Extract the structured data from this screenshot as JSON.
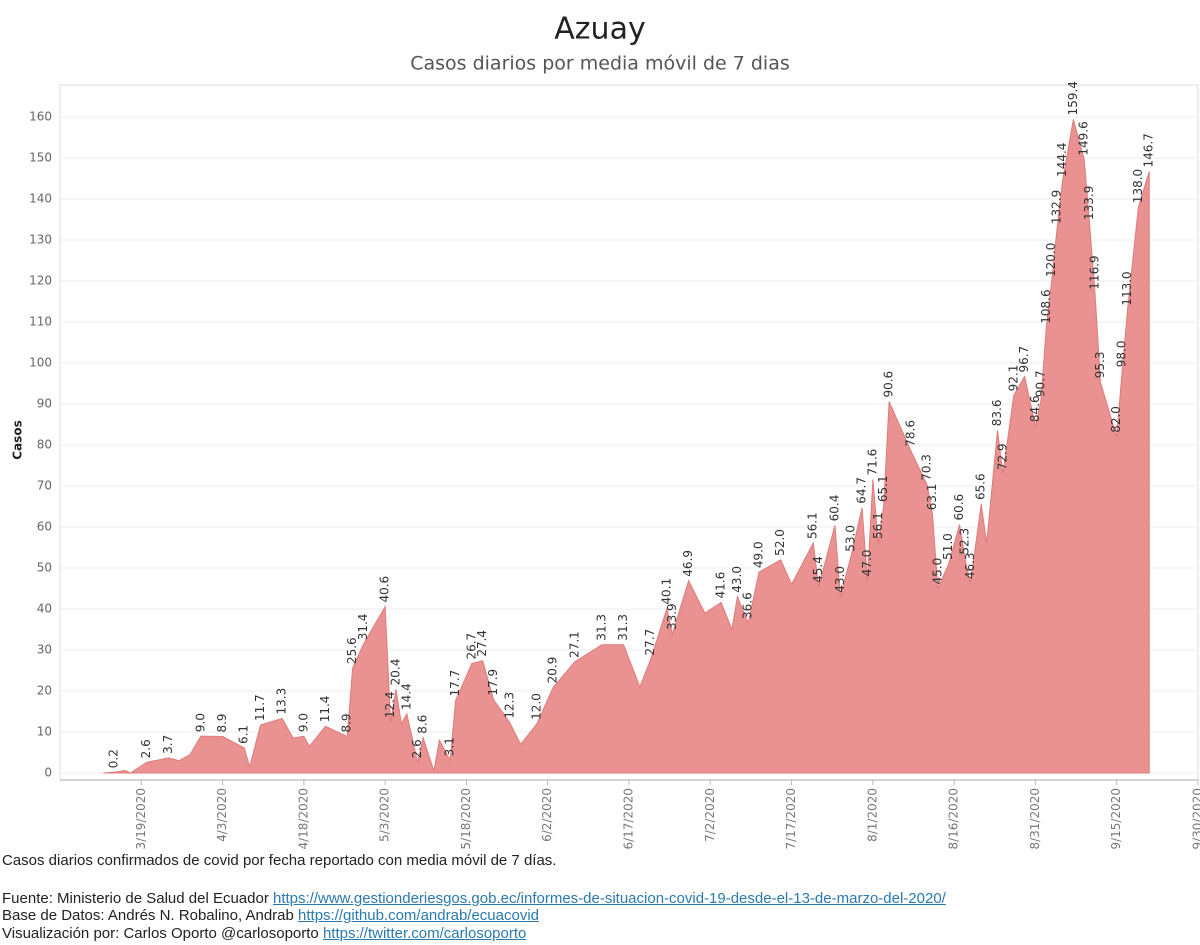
{
  "chart_data": {
    "type": "area",
    "title": "Azuay",
    "subtitle": "Casos diarios por media móvil de 7 dias",
    "y_label": "Casos",
    "color": "#ea9292",
    "grid": true,
    "ylim": [
      -1.7,
      167.8
    ],
    "yticks": [
      0,
      10,
      20,
      30,
      40,
      50,
      60,
      70,
      80,
      90,
      100,
      110,
      120,
      130,
      140,
      150,
      160
    ],
    "xlim": [
      "3/4/2020",
      "9/30/2020"
    ],
    "xticks": [
      "3/19/2020",
      "4/3/2020",
      "4/18/2020",
      "5/3/2020",
      "5/18/2020",
      "6/2/2020",
      "6/17/2020",
      "7/2/2020",
      "7/17/2020",
      "8/1/2020",
      "8/16/2020",
      "8/31/2020",
      "9/15/2020",
      "9/30/2020"
    ],
    "x": [
      "3/12/2020",
      "3/14/2020",
      "3/16/2020",
      "3/17/2020",
      "3/20/2020",
      "3/24/2020",
      "3/26/2020",
      "3/28/2020",
      "3/30/2020",
      "4/3/2020",
      "4/7/2020",
      "4/8/2020",
      "4/10/2020",
      "4/14/2020",
      "4/16/2020",
      "4/18/2020",
      "4/19/2020",
      "4/22/2020",
      "4/26/2020",
      "4/27/2020",
      "4/29/2020",
      "5/3/2020",
      "5/4/2020",
      "5/5/2020",
      "5/6/2020",
      "5/7/2020",
      "5/9/2020",
      "5/10/2020",
      "5/12/2020",
      "5/13/2020",
      "5/15/2020",
      "5/16/2020",
      "5/19/2020",
      "5/21/2020",
      "5/23/2020",
      "5/26/2020",
      "5/28/2020",
      "5/31/2020",
      "6/3/2020",
      "6/7/2020",
      "6/12/2020",
      "6/16/2020",
      "6/19/2020",
      "6/21/2020",
      "6/24/2020",
      "6/25/2020",
      "6/28/2020",
      "7/1/2020",
      "7/4/2020",
      "7/6/2020",
      "7/7/2020",
      "7/9/2020",
      "7/11/2020",
      "7/15/2020",
      "7/17/2020",
      "7/21/2020",
      "7/22/2020",
      "7/25/2020",
      "7/26/2020",
      "7/28/2020",
      "7/30/2020",
      "7/31/2020",
      "8/1/2020",
      "8/2/2020",
      "8/3/2020",
      "8/4/2020",
      "8/8/2020",
      "8/11/2020",
      "8/12/2020",
      "8/13/2020",
      "8/15/2020",
      "8/17/2020",
      "8/18/2020",
      "8/19/2020",
      "8/21/2020",
      "8/22/2020",
      "8/24/2020",
      "8/25/2020",
      "8/27/2020",
      "8/29/2020",
      "8/31/2020",
      "9/1/2020",
      "9/2/2020",
      "9/3/2020",
      "9/4/2020",
      "9/5/2020",
      "9/7/2020",
      "9/9/2020",
      "9/10/2020",
      "9/11/2020",
      "9/12/2020",
      "9/15/2020",
      "9/16/2020",
      "9/17/2020",
      "9/19/2020",
      "9/21/2020"
    ],
    "values": [
      0,
      0.2,
      0.6,
      0,
      2.6,
      3.7,
      3.0,
      4.5,
      9.0,
      8.9,
      6.1,
      1.5,
      11.7,
      13.3,
      8.5,
      9.0,
      6.5,
      11.4,
      8.9,
      25.6,
      31.4,
      40.6,
      12.4,
      20.4,
      12,
      14.4,
      2.6,
      8.6,
      0.5,
      8,
      3.1,
      17.7,
      26.7,
      27.4,
      17.9,
      12.3,
      7,
      12.0,
      20.9,
      27.1,
      31.3,
      31.3,
      21,
      27.7,
      40.1,
      33.9,
      46.9,
      39,
      41.6,
      35,
      43.0,
      36.6,
      49.0,
      52.0,
      46,
      56.1,
      45.4,
      60.4,
      43.0,
      53.0,
      64.7,
      47.0,
      71.6,
      56.1,
      65.1,
      90.6,
      78.6,
      70.3,
      63.1,
      45.0,
      51.0,
      60.6,
      52.3,
      46.3,
      65.6,
      56,
      83.6,
      72.9,
      92.1,
      96.7,
      84.6,
      90.7,
      108.6,
      120.0,
      132.9,
      144.4,
      159.4,
      149.6,
      133.9,
      116.9,
      95.3,
      82.0,
      98.0,
      113.0,
      138.0,
      146.7
    ],
    "value_labels": [
      null,
      "0.2",
      null,
      null,
      "2.6",
      "3.7",
      null,
      null,
      "9.0",
      "8.9",
      "6.1",
      null,
      "11.7",
      "13.3",
      null,
      "9.0",
      null,
      "11.4",
      "8.9",
      "25.6",
      "31.4",
      "40.6",
      "12.4",
      "20.4",
      null,
      "14.4",
      "2.6",
      "8.6",
      null,
      null,
      "3.1",
      "17.7",
      "26.7",
      "27.4",
      "17.9",
      "12.3",
      null,
      "12.0",
      "20.9",
      "27.1",
      "31.3",
      "31.3",
      null,
      "27.7",
      "40.1",
      "33.9",
      "46.9",
      null,
      "41.6",
      null,
      "43.0",
      "36.6",
      "49.0",
      "52.0",
      null,
      "56.1",
      "45.4",
      "60.4",
      "43.0",
      "53.0",
      "64.7",
      "47.0",
      "71.6",
      "56.1",
      "65.1",
      "90.6",
      "78.6",
      "70.3",
      "63.1",
      "45.0",
      "51.0",
      "60.6",
      "52.3",
      "46.3",
      "65.6",
      null,
      "83.6",
      "72.9",
      "92.1",
      "96.7",
      "84.6",
      "90.7",
      "108.6",
      "120.0",
      "132.9",
      "144.4",
      "159.4",
      "149.6",
      "133.9",
      "116.9",
      "95.3",
      "82.0",
      "98.0",
      "113.0",
      "138.0",
      "146.7"
    ]
  },
  "footer": {
    "note": "Casos diarios confirmados de covid por fecha reportado con media móvil de 7 días.",
    "lines": [
      {
        "text": "Fuente: Ministerio de Salud del Ecuador",
        "link": "https://www.gestionderiesgos.gob.ec/informes-de-situacion-covid-19-desde-el-13-de-marzo-del-2020/"
      },
      {
        "text": "Base de Datos: Andrés N. Robalino, Andrab",
        "link": "https://github.com/andrab/ecuacovid"
      },
      {
        "text": "Visualización por: Carlos Oporto @carlosoporto",
        "link": "https://twitter.com/carlosoporto"
      }
    ]
  }
}
